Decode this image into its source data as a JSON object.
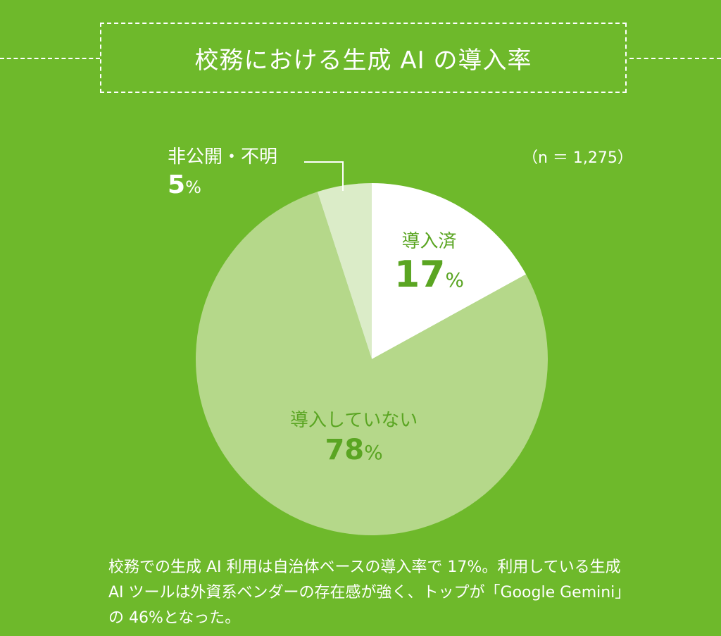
{
  "title": "校務における生成 AI の導入率",
  "sample_size": "（n ＝ 1,275）",
  "colors": {
    "background": "#6eb92b",
    "adopted": "#ffffff",
    "not_adopted": "#b5d88a",
    "undisclosed": "#dbecc8",
    "label_green": "#5aa522"
  },
  "labels": {
    "adopted": {
      "name": "導入済",
      "value": "17",
      "unit": "%"
    },
    "not_adopted": {
      "name": "導入していない",
      "value": "78",
      "unit": "%"
    },
    "undisclosed": {
      "name": "非公開・不明",
      "value": "5",
      "unit": "%"
    }
  },
  "caption": "校務での生成 AI 利用は自治体ベースの導入率で 17%。利用している生成 AI ツールは外資系ベンダーの存在感が強く、トップが「Google Gemini」の 46%となった。",
  "chart_data": {
    "type": "pie",
    "title": "校務における生成 AI の導入率",
    "n": "1,275",
    "categories": [
      "導入済",
      "導入していない",
      "非公開・不明"
    ],
    "values": [
      17,
      78,
      5
    ],
    "unit": "%"
  }
}
